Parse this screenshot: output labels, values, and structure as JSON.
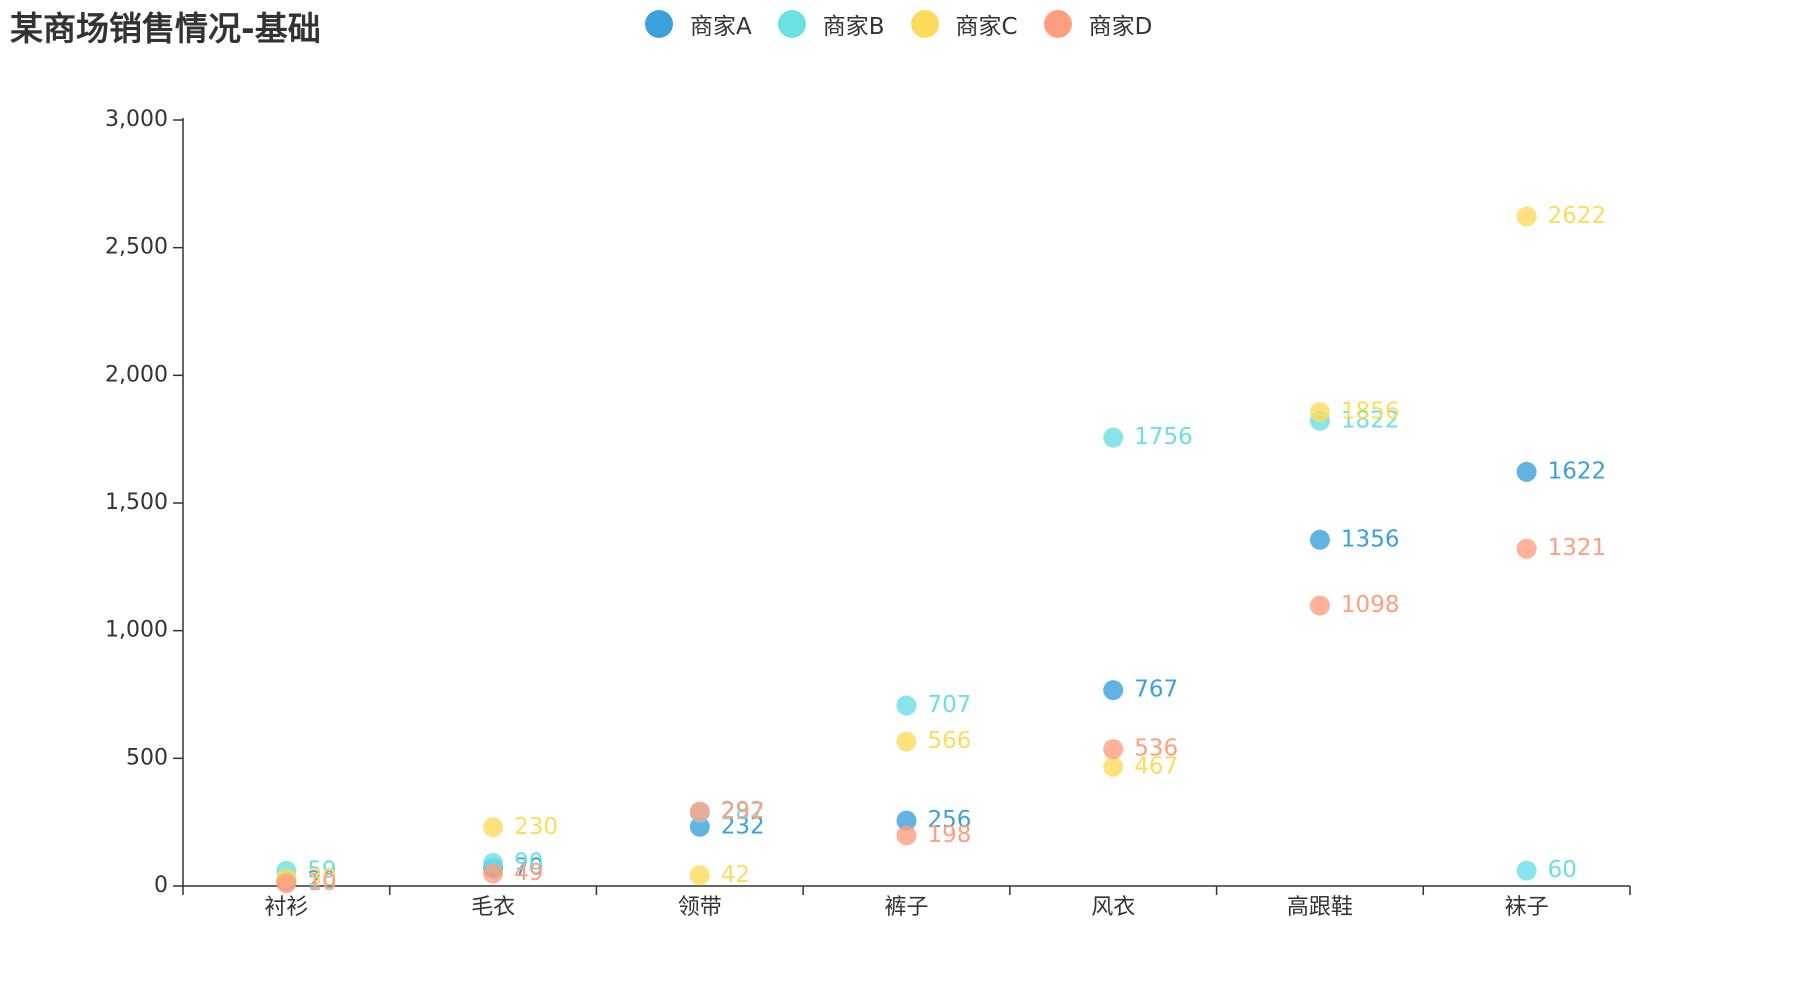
{
  "chart_data": {
    "type": "scatter",
    "title": "某商场销售情况-基础",
    "xlabel": "",
    "ylabel": "",
    "categories": [
      "衬衫",
      "毛衣",
      "领带",
      "裤子",
      "风衣",
      "高跟鞋",
      "袜子"
    ],
    "ylim": [
      0,
      3000
    ],
    "yticks": [
      0,
      500,
      1000,
      1500,
      2000,
      2500,
      3000
    ],
    "ytick_labels": [
      "0",
      "500",
      "1,000",
      "1,500",
      "2,000",
      "2,500",
      "3,000"
    ],
    "grid": false,
    "legend_position": "top-center",
    "series": [
      {
        "name": "商家A",
        "color": "#3ba0dc",
        "values": [
          20,
          70,
          232,
          256,
          767,
          1356,
          1622
        ]
      },
      {
        "name": "商家B",
        "color": "#6ae0e5",
        "values": [
          59,
          90,
          287,
          707,
          1756,
          1822,
          60
        ]
      },
      {
        "name": "商家C",
        "color": "#ffdb5c",
        "values": [
          30,
          230,
          42,
          566,
          467,
          1856,
          2622
        ]
      },
      {
        "name": "商家D",
        "color": "#ff9f7f",
        "values": [
          10,
          49,
          292,
          198,
          536,
          1098,
          1321
        ]
      }
    ]
  }
}
